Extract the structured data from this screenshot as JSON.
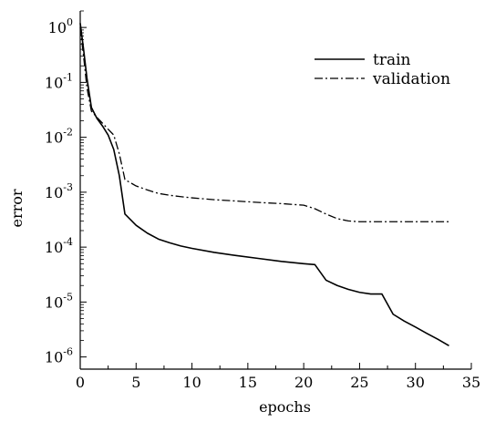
{
  "chart_data": {
    "type": "line",
    "xlabel": "epochs",
    "ylabel": "error",
    "xlim": [
      0,
      35
    ],
    "ylim": [
      6e-07,
      2
    ],
    "yscale": "log",
    "xticks": [
      0,
      5,
      10,
      15,
      20,
      25,
      30,
      35
    ],
    "yticks": [
      {
        "exp": "0",
        "value": 1
      },
      {
        "exp": "-1",
        "value": 0.1
      },
      {
        "exp": "-2",
        "value": 0.01
      },
      {
        "exp": "-3",
        "value": 0.001
      },
      {
        "exp": "-4",
        "value": 0.0001
      },
      {
        "exp": "-5",
        "value": 1e-05
      },
      {
        "exp": "-6",
        "value": 1e-06
      }
    ],
    "ytick_base": "10",
    "legend_position": "top-right",
    "series": [
      {
        "name": "train",
        "style": "solid",
        "color": "#000000",
        "points": [
          [
            0,
            1.2
          ],
          [
            0.3,
            0.4
          ],
          [
            0.6,
            0.12
          ],
          [
            1,
            0.035
          ],
          [
            1.5,
            0.022
          ],
          [
            2,
            0.016
          ],
          [
            2.5,
            0.011
          ],
          [
            3,
            0.006
          ],
          [
            3.5,
            0.002
          ],
          [
            4,
            0.0004
          ],
          [
            5,
            0.00025
          ],
          [
            6,
            0.00018
          ],
          [
            7,
            0.00014
          ],
          [
            8,
            0.00012
          ],
          [
            9,
            0.000105
          ],
          [
            10,
            9.5e-05
          ],
          [
            12,
            8e-05
          ],
          [
            14,
            7e-05
          ],
          [
            16,
            6.2e-05
          ],
          [
            18,
            5.5e-05
          ],
          [
            20,
            5e-05
          ],
          [
            21,
            4.8e-05
          ],
          [
            22,
            2.5e-05
          ],
          [
            23,
            2e-05
          ],
          [
            24,
            1.7e-05
          ],
          [
            25,
            1.5e-05
          ],
          [
            26,
            1.4e-05
          ],
          [
            27,
            1.4e-05
          ],
          [
            28,
            6e-06
          ],
          [
            29,
            4.5e-06
          ],
          [
            30,
            3.5e-06
          ],
          [
            31,
            2.7e-06
          ],
          [
            32,
            2.1e-06
          ],
          [
            33,
            1.6e-06
          ]
        ]
      },
      {
        "name": "validation",
        "style": "dashdot",
        "color": "#000000",
        "points": [
          [
            0,
            1.0
          ],
          [
            0.3,
            0.3
          ],
          [
            0.6,
            0.08
          ],
          [
            1,
            0.03
          ],
          [
            1.5,
            0.023
          ],
          [
            2,
            0.018
          ],
          [
            2.5,
            0.014
          ],
          [
            3,
            0.011
          ],
          [
            3.5,
            0.005
          ],
          [
            4,
            0.0017
          ],
          [
            5,
            0.0013
          ],
          [
            6,
            0.0011
          ],
          [
            7,
            0.00095
          ],
          [
            8,
            0.00088
          ],
          [
            9,
            0.00083
          ],
          [
            10,
            0.00079
          ],
          [
            12,
            0.00073
          ],
          [
            14,
            0.00069
          ],
          [
            16,
            0.00065
          ],
          [
            18,
            0.00062
          ],
          [
            20,
            0.00058
          ],
          [
            21,
            0.0005
          ],
          [
            22,
            0.0004
          ],
          [
            23,
            0.00033
          ],
          [
            24,
            0.0003
          ],
          [
            25,
            0.00029
          ],
          [
            27,
            0.00029
          ],
          [
            30,
            0.00029
          ],
          [
            33,
            0.00029
          ]
        ]
      }
    ]
  }
}
